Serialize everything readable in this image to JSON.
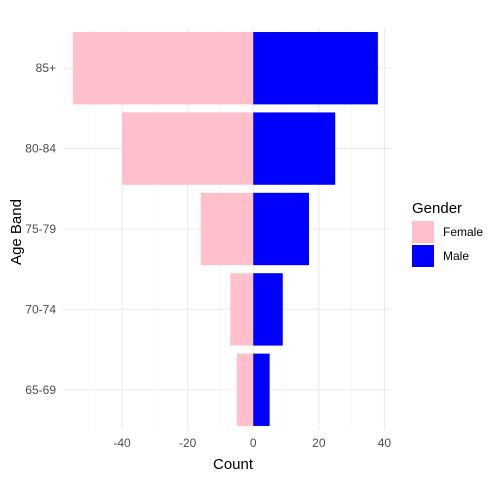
{
  "chart_data": {
    "type": "bar",
    "orientation": "horizontal",
    "layout": "population-pyramid",
    "xlabel": "Count",
    "ylabel": "Age Band",
    "categories": [
      "65-69",
      "70-74",
      "75-79",
      "80-84",
      "85+"
    ],
    "series": [
      {
        "name": "Female",
        "color": "#FFC0CB",
        "values": [
          -5,
          -7,
          -16,
          -40,
          -55
        ]
      },
      {
        "name": "Male",
        "color": "#0000FF",
        "values": [
          5,
          9,
          17,
          25,
          38
        ]
      }
    ],
    "xlim": [
      -58,
      42
    ],
    "xticks": [
      -40,
      -20,
      0,
      20,
      40
    ],
    "xtick_labels": [
      "-40",
      "-20",
      "0",
      "20",
      "40"
    ],
    "grid": true,
    "legend": {
      "title": "Gender",
      "position": "right",
      "entries": [
        "Female",
        "Male"
      ]
    }
  }
}
